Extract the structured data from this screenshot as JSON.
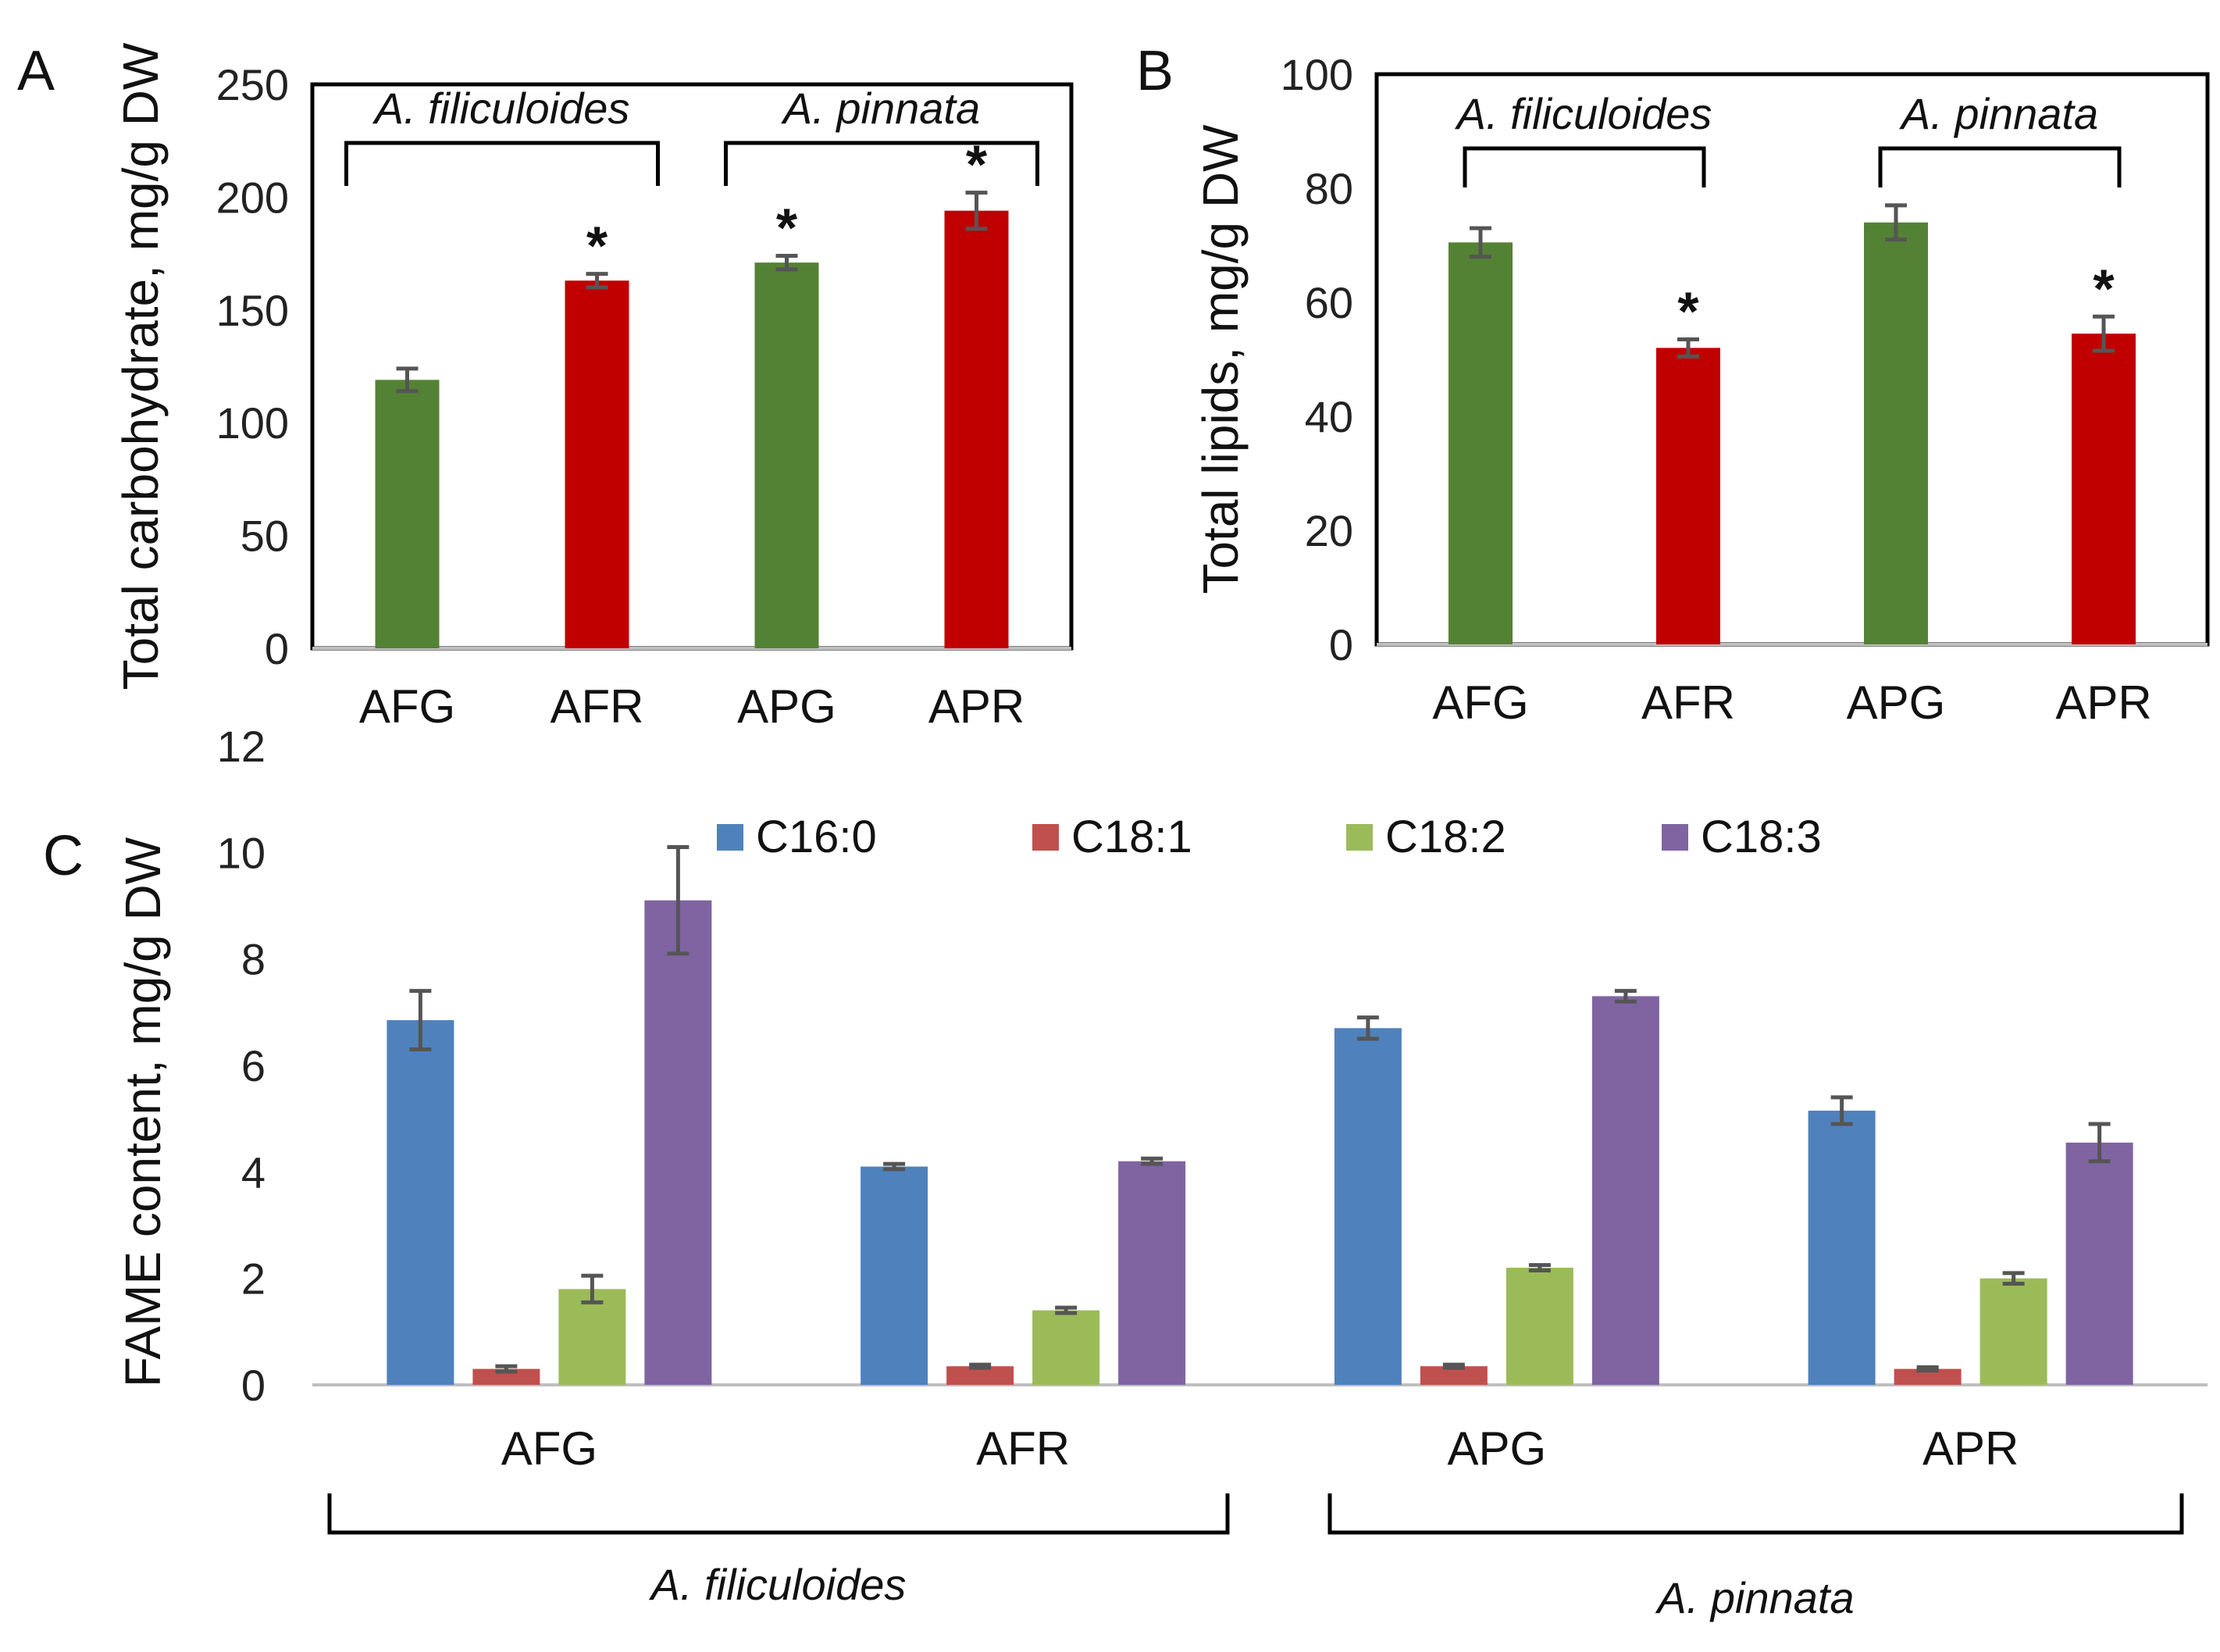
{
  "chart_data": [
    {
      "panel": "A",
      "type": "bar",
      "ylabel": "Total carbohydrate, mg/g DW",
      "ylim": [
        0,
        250
      ],
      "yticks": [
        0,
        50,
        100,
        150,
        200,
        250
      ],
      "categories": [
        "AFG",
        "AFR",
        "APG",
        "APR"
      ],
      "values": [
        119,
        163,
        171,
        194
      ],
      "errors": [
        5,
        3,
        3,
        8
      ],
      "colors": [
        "#548235",
        "#c00000",
        "#548235",
        "#c00000"
      ],
      "significance": [
        "",
        "*",
        "*",
        "*"
      ],
      "groups": [
        {
          "label": "A. filiculoides",
          "members": [
            "AFG",
            "AFR"
          ]
        },
        {
          "label": "A. pinnata",
          "members": [
            "APG",
            "APR"
          ]
        }
      ]
    },
    {
      "panel": "B",
      "type": "bar",
      "ylabel": "Total lipids,  mg/g DW",
      "ylim": [
        0,
        100
      ],
      "yticks": [
        0,
        20,
        40,
        60,
        80,
        100
      ],
      "categories": [
        "AFG",
        "AFR",
        "APG",
        "APR"
      ],
      "values": [
        70.5,
        52,
        74,
        54.5
      ],
      "errors": [
        2.5,
        1.5,
        3,
        3
      ],
      "colors": [
        "#548235",
        "#c00000",
        "#548235",
        "#c00000"
      ],
      "significance": [
        "",
        "*",
        "",
        "*"
      ],
      "groups": [
        {
          "label": "A. filiculoides",
          "members": [
            "AFG",
            "AFR"
          ]
        },
        {
          "label": "A. pinnata",
          "members": [
            "APG",
            "APR"
          ]
        }
      ]
    },
    {
      "panel": "C",
      "type": "bar",
      "ylabel": "FAME content, mg/g DW",
      "ylim": [
        0,
        12
      ],
      "yticks": [
        0,
        2,
        4,
        6,
        8,
        10,
        12
      ],
      "categories": [
        "AFG",
        "AFR",
        "APG",
        "APR"
      ],
      "series": [
        {
          "name": "C16:0",
          "color": "#4f81bd",
          "values": [
            6.85,
            4.1,
            6.7,
            5.15
          ],
          "errors": [
            0.55,
            0.05,
            0.2,
            0.25
          ]
        },
        {
          "name": "C18:1",
          "color": "#c0504d",
          "values": [
            0.3,
            0.35,
            0.35,
            0.3
          ],
          "errors": [
            0.05,
            0.03,
            0.03,
            0.03
          ]
        },
        {
          "name": "C18:2",
          "color": "#9bbb59",
          "values": [
            1.8,
            1.4,
            2.2,
            2.0
          ],
          "errors": [
            0.25,
            0.05,
            0.05,
            0.1
          ]
        },
        {
          "name": "C18:3",
          "color": "#8064a2",
          "values": [
            9.1,
            4.2,
            7.3,
            4.55
          ],
          "errors": [
            1.0,
            0.05,
            0.1,
            0.35
          ]
        }
      ],
      "legend_position": "top",
      "groups": [
        {
          "label": "A. filiculoides",
          "members": [
            "AFG",
            "AFR"
          ]
        },
        {
          "label": "A. pinnata",
          "members": [
            "APG",
            "APR"
          ]
        }
      ]
    }
  ]
}
